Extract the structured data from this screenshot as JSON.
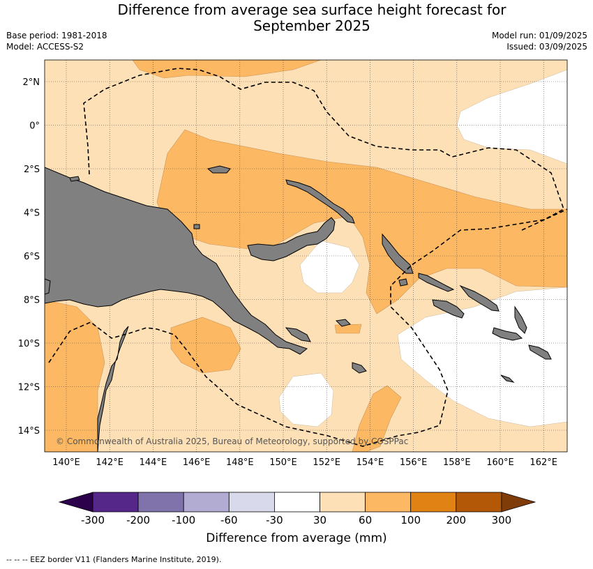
{
  "header": {
    "title_line1": "Difference from average sea surface height forecast for",
    "title_line2": "September 2025",
    "base_period": "Base period: 1981-2018",
    "model": "Model: ACCESS-S2",
    "model_run": "Model run: 01/09/2025",
    "issued": "Issued: 03/09/2025"
  },
  "map": {
    "lon_labels": [
      "140°E",
      "142°E",
      "144°E",
      "146°E",
      "148°E",
      "150°E",
      "152°E",
      "154°E",
      "156°E",
      "158°E",
      "160°E",
      "162°E"
    ],
    "lat_labels": [
      "2°N",
      "0°",
      "2°S",
      "4°S",
      "6°S",
      "8°S",
      "10°S",
      "12°S",
      "14°S"
    ],
    "copyright": "© Commonwealth of Australia 2025, Bureau of Meteorology, supported by COSPPac",
    "land_color": "#808080"
  },
  "colorbar": {
    "ticks": [
      "-300",
      "-200",
      "-100",
      "-60",
      "-30",
      "30",
      "60",
      "100",
      "200",
      "300"
    ],
    "colors": [
      "#542788",
      "#8073ac",
      "#b2abd2",
      "#d8daeb",
      "#ffffff",
      "#fee0b6",
      "#fdb863",
      "#e08214",
      "#b35806"
    ],
    "extend_low": "#2d004b",
    "extend_high": "#7f3b08",
    "label": "Difference from average (mm)"
  },
  "legend": {
    "eez_line": "--  --  -- EEZ border V11 (Flanders Marine Institute, 2019)."
  }
}
